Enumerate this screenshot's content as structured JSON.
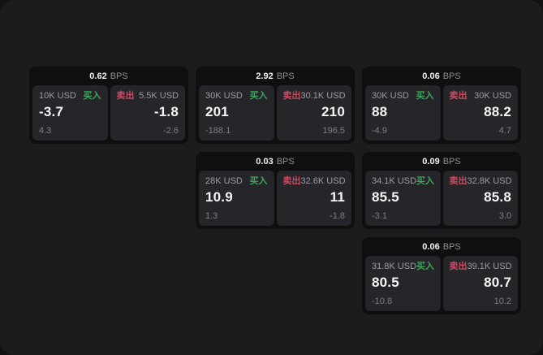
{
  "labels": {
    "bps_unit": "BPS",
    "buy": "买入",
    "sell": "卖出"
  },
  "colors": {
    "backdrop": "#121212",
    "panel_bg": "#1c1c1e",
    "card_bg": "#0f0f10",
    "tile_bg": "#26262a",
    "buy_green": "#3fa55a",
    "sell_red": "#cc4b61",
    "primary_text": "#f5f5f6",
    "muted_text": "#9b9ba1"
  },
  "cards": [
    {
      "col": 1,
      "row": 1,
      "bps": "0.62",
      "buy": {
        "amount": "10K USD",
        "price": "-3.7",
        "change": "4.3"
      },
      "sell": {
        "amount": "5.5K USD",
        "price": "-1.8",
        "change": "-2.6"
      }
    },
    {
      "col": 2,
      "row": 1,
      "bps": "2.92",
      "buy": {
        "amount": "30K USD",
        "price": "201",
        "change": "-188.1"
      },
      "sell": {
        "amount": "30.1K USD",
        "price": "210",
        "change": "196.5"
      }
    },
    {
      "col": 3,
      "row": 1,
      "bps": "0.06",
      "buy": {
        "amount": "30K USD",
        "price": "88",
        "change": "-4.9"
      },
      "sell": {
        "amount": "30K USD",
        "price": "88.2",
        "change": "4.7"
      }
    },
    {
      "col": 2,
      "row": 2,
      "bps": "0.03",
      "buy": {
        "amount": "28K USD",
        "price": "10.9",
        "change": "1.3"
      },
      "sell": {
        "amount": "32.6K USD",
        "price": "11",
        "change": "-1.8"
      }
    },
    {
      "col": 3,
      "row": 2,
      "bps": "0.09",
      "buy": {
        "amount": "34.1K USD",
        "price": "85.5",
        "change": "-3.1"
      },
      "sell": {
        "amount": "32.8K USD",
        "price": "85.8",
        "change": "3.0"
      }
    },
    {
      "col": 3,
      "row": 3,
      "bps": "0.06",
      "buy": {
        "amount": "31.8K USD",
        "price": "80.5",
        "change": "-10.8"
      },
      "sell": {
        "amount": "39.1K USD",
        "price": "80.7",
        "change": "10.2"
      }
    }
  ]
}
